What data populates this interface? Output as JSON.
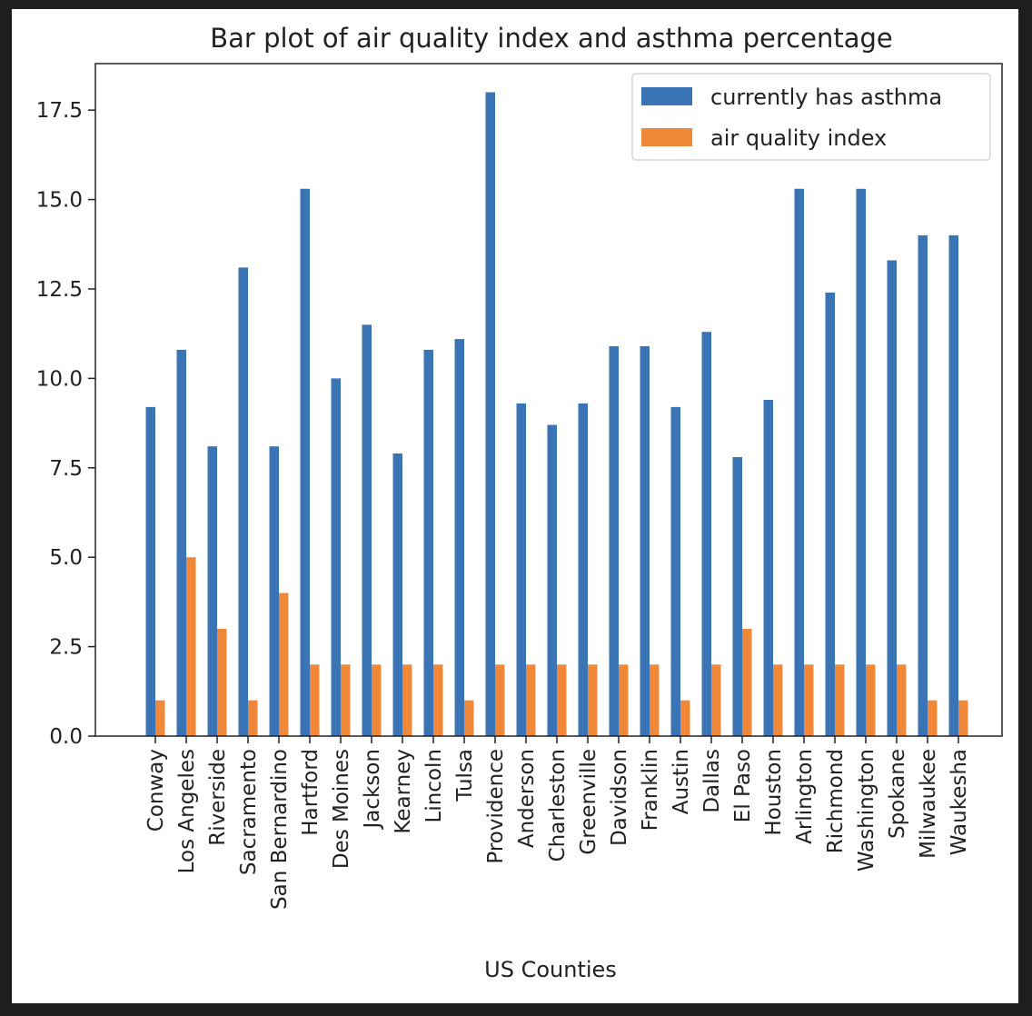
{
  "chart_data": {
    "type": "bar",
    "title": "Bar plot of air quality index and asthma percentage",
    "xlabel": "US Counties",
    "ylabel": "",
    "ylim": [
      0,
      18.8
    ],
    "yticks": [
      0.0,
      2.5,
      5.0,
      7.5,
      10.0,
      12.5,
      15.0,
      17.5
    ],
    "ytick_labels": [
      "0.0",
      "2.5",
      "5.0",
      "7.5",
      "10.0",
      "12.5",
      "15.0",
      "17.5"
    ],
    "grid": false,
    "legend_position": "top-right",
    "categories": [
      "Conway",
      "Los Angeles",
      "Riverside",
      "Sacramento",
      "San Bernardino",
      "Hartford",
      "Des Moines",
      "Jackson",
      "Kearney",
      "Lincoln",
      "Tulsa",
      "Providence",
      "Anderson",
      "Charleston",
      "Greenville",
      "Davidson",
      "Franklin",
      "Austin",
      "Dallas",
      "El Paso",
      "Houston",
      "Arlington",
      "Richmond",
      "Washington",
      "Spokane",
      "Milwaukee",
      "Waukesha"
    ],
    "series": [
      {
        "name": "currently has asthma",
        "color": "#3a74b4",
        "values": [
          9.2,
          10.8,
          8.1,
          13.1,
          8.1,
          15.3,
          10.0,
          11.5,
          7.9,
          10.8,
          11.1,
          18.0,
          9.3,
          8.7,
          9.3,
          10.9,
          10.9,
          9.2,
          11.3,
          7.8,
          9.4,
          15.3,
          12.4,
          15.3,
          13.3,
          14.0,
          14.0
        ]
      },
      {
        "name": "air quality index",
        "color": "#f0883a",
        "values": [
          1,
          5,
          3,
          1,
          4,
          2,
          2,
          2,
          2,
          2,
          1,
          2,
          2,
          2,
          2,
          2,
          2,
          1,
          2,
          3,
          2,
          2,
          2,
          2,
          2,
          1,
          1
        ]
      }
    ]
  }
}
